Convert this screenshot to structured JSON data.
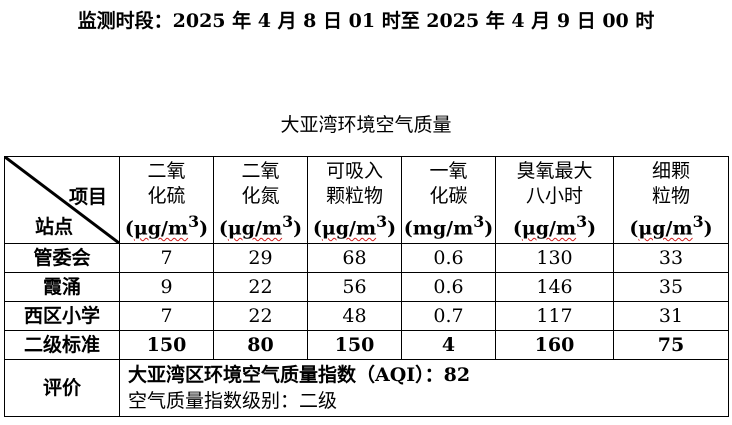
{
  "period": "监测时段：2025 年 4 月 8 日 01 时至 2025 年 4 月 9 日 00 时",
  "title": "大亚湾环境空气质量",
  "header": {
    "diag_top": "项目",
    "diag_bottom": "站点",
    "columns": [
      {
        "line1": "二氧",
        "line2": "化硫",
        "unit_open": "(",
        "unit": "μg/m",
        "unit_sup": "3",
        "unit_close": ")"
      },
      {
        "line1": "二氧",
        "line2": "化氮",
        "unit_open": "(",
        "unit": "μg/m",
        "unit_sup": "3",
        "unit_close": ")"
      },
      {
        "line1": "可吸入",
        "line2": "颗粒物",
        "unit_open": "(",
        "unit": "μg/m",
        "unit_sup": "3",
        "unit_close": ")"
      },
      {
        "line1": "一氧",
        "line2": "化碳",
        "unit_open": "(",
        "unit": "mg/m",
        "unit_sup": "3",
        "unit_close": ")"
      },
      {
        "line1": "臭氧最大",
        "line2": "八小时",
        "unit_open": "(",
        "unit": "μg/m",
        "unit_sup": "3",
        "unit_close": ")"
      },
      {
        "line1": "细颗",
        "line2": "粒物",
        "unit_open": "(",
        "unit": "μg/m",
        "unit_sup": "3",
        "unit_close": ")"
      }
    ]
  },
  "rows": [
    {
      "station": "管委会",
      "values": [
        "7",
        "29",
        "68",
        "0.6",
        "130",
        "33"
      ]
    },
    {
      "station": "霞涌",
      "values": [
        "9",
        "22",
        "56",
        "0.6",
        "146",
        "35"
      ]
    },
    {
      "station": "西区小学",
      "values": [
        "7",
        "22",
        "48",
        "0.7",
        "117",
        "31"
      ]
    }
  ],
  "standard": {
    "station": "二级标准",
    "values": [
      "150",
      "80",
      "150",
      "4",
      "160",
      "75"
    ]
  },
  "evaluation": {
    "label": "评价",
    "line1": "大亚湾区环境空气质量指数（AQI）：82",
    "line2": "空气质量指数级别：二级"
  }
}
